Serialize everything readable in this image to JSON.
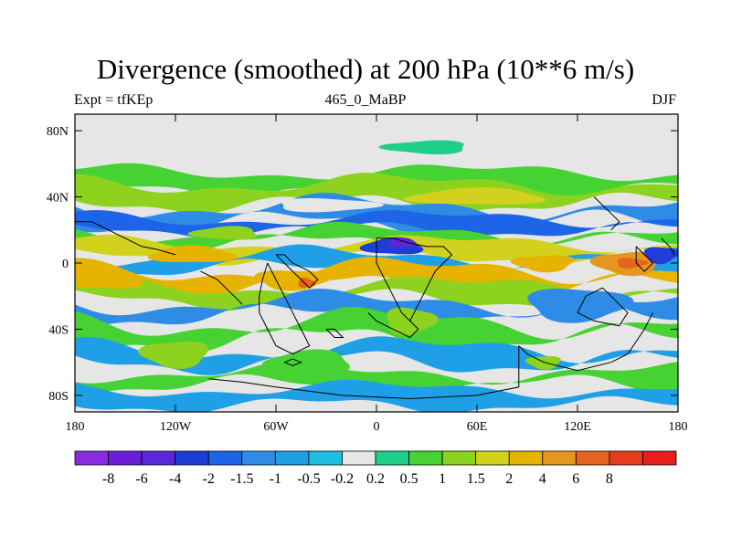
{
  "chart_data": {
    "type": "heatmap",
    "title": "Divergence (smoothed) at 200 hPa (10**6 m/s)",
    "subtitle_left": "Expt = tfKEp",
    "subtitle_center": "465_0_MaBP",
    "subtitle_right": "DJF",
    "xlim": [
      -180,
      180
    ],
    "ylim": [
      -90,
      90
    ],
    "x_ticks": [
      {
        "value": -180,
        "label": "180"
      },
      {
        "value": -120,
        "label": "120W"
      },
      {
        "value": -60,
        "label": "60W"
      },
      {
        "value": 0,
        "label": "0"
      },
      {
        "value": 60,
        "label": "60E"
      },
      {
        "value": 120,
        "label": "120E"
      },
      {
        "value": 180,
        "label": "180"
      }
    ],
    "y_ticks": [
      {
        "value": 80,
        "label": "80N"
      },
      {
        "value": 40,
        "label": "40N"
      },
      {
        "value": 0,
        "label": "0"
      },
      {
        "value": -40,
        "label": "40S"
      },
      {
        "value": -80,
        "label": "80S"
      }
    ],
    "colorbar": {
      "colors": [
        "#8A2BE2",
        "#6A1FD6",
        "#5A28D8",
        "#1E3CD6",
        "#1E64E6",
        "#2E8CE6",
        "#1FA0E6",
        "#1EBEE0",
        "#E6E6E6",
        "#1ECF8A",
        "#46D232",
        "#8CD21E",
        "#D2D21E",
        "#E6B400",
        "#E6961E",
        "#E6641E",
        "#E63C1E",
        "#E61E1E"
      ],
      "labels": [
        "-8",
        "-6",
        "-4",
        "-2",
        "-1.5",
        "-1",
        "-0.5",
        "-0.2",
        "0.2",
        "0.5",
        "1",
        "1.5",
        "2",
        "4",
        "6",
        "8"
      ]
    },
    "bands": [
      {
        "lat_top": 55,
        "lat_bottom": 45,
        "level": 10,
        "amp": 4,
        "phase": 0.0
      },
      {
        "lat_top": 48,
        "lat_bottom": 36,
        "level": 11,
        "amp": 5,
        "phase": 1.2
      },
      {
        "lat_top": 34,
        "lat_bottom": 24,
        "level": 5,
        "amp": 6,
        "phase": 2.1
      },
      {
        "lat_top": 27,
        "lat_bottom": 20,
        "level": 4,
        "amp": 4,
        "phase": 0.7
      },
      {
        "lat_top": 18,
        "lat_bottom": 12,
        "level": 10,
        "amp": 5,
        "phase": 1.8
      },
      {
        "lat_top": 12,
        "lat_bottom": 4,
        "level": 12,
        "amp": 4,
        "phase": 0.4
      },
      {
        "lat_top": 4,
        "lat_bottom": -4,
        "level": 6,
        "amp": 5,
        "phase": 2.6
      },
      {
        "lat_top": -4,
        "lat_bottom": -14,
        "level": 13,
        "amp": 6,
        "phase": 1.1
      },
      {
        "lat_top": -14,
        "lat_bottom": -22,
        "level": 11,
        "amp": 5,
        "phase": 0.3
      },
      {
        "lat_top": -24,
        "lat_bottom": -32,
        "level": 5,
        "amp": 6,
        "phase": 2.2
      },
      {
        "lat_top": -36,
        "lat_bottom": -46,
        "level": 10,
        "amp": 7,
        "phase": 1.5
      },
      {
        "lat_top": -52,
        "lat_bottom": -60,
        "level": 6,
        "amp": 6,
        "phase": 0.9
      },
      {
        "lat_top": -66,
        "lat_bottom": -74,
        "level": 10,
        "amp": 5,
        "phase": 2.8
      },
      {
        "lat_top": -76,
        "lat_bottom": -86,
        "level": 6,
        "amp": 4,
        "phase": 1.6
      }
    ],
    "blobs": [
      {
        "lon": 10,
        "lat": 10,
        "rx": 18,
        "ry": 5,
        "level": 3
      },
      {
        "lon": 15,
        "lat": 12,
        "rx": 8,
        "ry": 3,
        "level": 2
      },
      {
        "lon": 150,
        "lat": 0,
        "rx": 20,
        "ry": 7,
        "level": 14
      },
      {
        "lon": 152,
        "lat": 0,
        "rx": 9,
        "ry": 3,
        "level": 15
      },
      {
        "lon": 100,
        "lat": 0,
        "rx": 18,
        "ry": 5,
        "level": 13
      },
      {
        "lon": -50,
        "lat": -10,
        "rx": 22,
        "ry": 6,
        "level": 13
      },
      {
        "lon": -42,
        "lat": -12,
        "rx": 5,
        "ry": 3,
        "level": 15
      },
      {
        "lon": -110,
        "lat": 5,
        "rx": 25,
        "ry": 5,
        "level": 13
      },
      {
        "lon": -160,
        "lat": -10,
        "rx": 20,
        "ry": 6,
        "level": 13
      },
      {
        "lon": 170,
        "lat": 5,
        "rx": 10,
        "ry": 5,
        "level": 3
      },
      {
        "lon": -90,
        "lat": 18,
        "rx": 20,
        "ry": 4,
        "level": 11
      },
      {
        "lon": 120,
        "lat": -25,
        "rx": 30,
        "ry": 10,
        "level": 5
      },
      {
        "lon": 20,
        "lat": -35,
        "rx": 15,
        "ry": 8,
        "level": 11
      },
      {
        "lon": -120,
        "lat": -55,
        "rx": 20,
        "ry": 8,
        "level": 11
      },
      {
        "lon": -40,
        "lat": -60,
        "rx": 25,
        "ry": 7,
        "level": 10
      },
      {
        "lon": 100,
        "lat": -60,
        "rx": 10,
        "ry": 4,
        "level": 11
      },
      {
        "lon": 30,
        "lat": 70,
        "rx": 25,
        "ry": 4,
        "level": 9
      },
      {
        "lon": -30,
        "lat": 35,
        "rx": 30,
        "ry": 4,
        "level": 8
      },
      {
        "lon": 60,
        "lat": 40,
        "rx": 40,
        "ry": 5,
        "level": 12
      }
    ],
    "coastlines": [
      [
        [
          -180,
          25
        ],
        [
          -170,
          25
        ],
        [
          -160,
          20
        ],
        [
          -150,
          15
        ],
        [
          -140,
          10
        ],
        [
          -130,
          8
        ],
        [
          -120,
          5
        ]
      ],
      [
        [
          -105,
          -5
        ],
        [
          -95,
          -10
        ],
        [
          -90,
          -15
        ],
        [
          -85,
          -20
        ],
        [
          -80,
          -25
        ]
      ],
      [
        [
          -60,
          5
        ],
        [
          -55,
          0
        ],
        [
          -50,
          -5
        ],
        [
          -45,
          -10
        ],
        [
          -40,
          -15
        ],
        [
          -35,
          -10
        ],
        [
          -40,
          -5
        ],
        [
          -50,
          0
        ],
        [
          -55,
          5
        ],
        [
          -60,
          5
        ]
      ],
      [
        [
          -65,
          0
        ],
        [
          -60,
          -10
        ],
        [
          -55,
          -20
        ],
        [
          -50,
          -30
        ],
        [
          -45,
          -40
        ],
        [
          -40,
          -50
        ],
        [
          -50,
          -55
        ],
        [
          -60,
          -50
        ],
        [
          -65,
          -40
        ],
        [
          -70,
          -30
        ],
        [
          -70,
          -20
        ],
        [
          -68,
          -10
        ],
        [
          -65,
          0
        ]
      ],
      [
        [
          0,
          15
        ],
        [
          10,
          15
        ],
        [
          20,
          12
        ],
        [
          30,
          10
        ],
        [
          40,
          10
        ],
        [
          45,
          5
        ],
        [
          40,
          0
        ],
        [
          35,
          -5
        ],
        [
          30,
          -15
        ],
        [
          25,
          -25
        ],
        [
          20,
          -35
        ],
        [
          15,
          -30
        ],
        [
          10,
          -20
        ],
        [
          5,
          -10
        ],
        [
          0,
          0
        ],
        [
          0,
          15
        ]
      ],
      [
        [
          -5,
          -30
        ],
        [
          0,
          -35
        ],
        [
          10,
          -40
        ],
        [
          20,
          -45
        ],
        [
          25,
          -40
        ],
        [
          20,
          -35
        ]
      ],
      [
        [
          85,
          -50
        ],
        [
          90,
          -55
        ],
        [
          100,
          -60
        ],
        [
          120,
          -65
        ],
        [
          140,
          -60
        ],
        [
          150,
          -55
        ],
        [
          160,
          -40
        ],
        [
          165,
          -30
        ]
      ],
      [
        [
          -100,
          -70
        ],
        [
          -80,
          -72
        ],
        [
          -60,
          -75
        ],
        [
          -20,
          -80
        ],
        [
          20,
          -82
        ],
        [
          60,
          -80
        ],
        [
          85,
          -75
        ],
        [
          85,
          -50
        ]
      ],
      [
        [
          135,
          -15
        ],
        [
          140,
          -20
        ],
        [
          145,
          -25
        ],
        [
          150,
          -30
        ],
        [
          145,
          -38
        ],
        [
          130,
          -35
        ],
        [
          120,
          -30
        ],
        [
          125,
          -20
        ],
        [
          135,
          -15
        ]
      ],
      [
        [
          130,
          40
        ],
        [
          135,
          35
        ],
        [
          140,
          30
        ],
        [
          145,
          25
        ],
        [
          140,
          20
        ]
      ],
      [
        [
          155,
          10
        ],
        [
          160,
          5
        ],
        [
          165,
          0
        ],
        [
          160,
          -5
        ],
        [
          155,
          0
        ],
        [
          155,
          10
        ]
      ],
      [
        [
          170,
          15
        ],
        [
          175,
          10
        ],
        [
          178,
          5
        ]
      ],
      [
        [
          -30,
          -40
        ],
        [
          -25,
          -45
        ],
        [
          -20,
          -45
        ],
        [
          -25,
          -40
        ],
        [
          -30,
          -40
        ]
      ],
      [
        [
          -55,
          -60
        ],
        [
          -50,
          -62
        ],
        [
          -45,
          -60
        ],
        [
          -50,
          -58
        ],
        [
          -55,
          -60
        ]
      ]
    ]
  }
}
